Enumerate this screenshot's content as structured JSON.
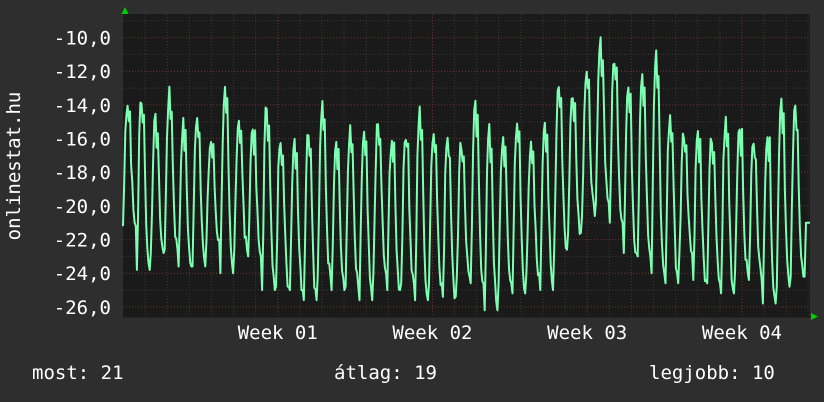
{
  "chart_data": {
    "type": "line",
    "ylabel": "onlinestat.hu",
    "yticks": [
      "-10,0",
      "-12,0",
      "-14,0",
      "-16,0",
      "-18,0",
      "-20,0",
      "-22,0",
      "-24,0",
      "-26,0"
    ],
    "ytick_values": [
      -10,
      -12,
      -14,
      -16,
      -18,
      -20,
      -22,
      -24,
      -26
    ],
    "ylim": [
      -26.6,
      -8.6
    ],
    "xticks": [
      "Week 01",
      "Week 02",
      "Week 03",
      "Week 04"
    ],
    "xtick_positions": [
      1,
      2,
      3,
      4
    ],
    "xlim": [
      0,
      4.44
    ],
    "grid": true,
    "series": [
      {
        "color": "#7dffb2",
        "peaks": [
          -13.8,
          -13.5,
          -15.0,
          -13.4,
          -15.2,
          -14.5,
          -16.2,
          -13.2,
          -14.8,
          -15.4,
          -14.0,
          -15.8,
          -16.0,
          -15.4,
          -14.2,
          -16.0,
          -15.6,
          -15.8,
          -15.2,
          -16.0,
          -15.6,
          -14.5,
          -15.4,
          -16.0,
          -16.2,
          -14.2,
          -15.6,
          -16.0,
          -15.0,
          -16.6,
          -14.8,
          -12.6,
          -13.2,
          -12.2,
          -10.4,
          -11.2,
          -13.0,
          -12.0,
          -11.0,
          -14.6,
          -15.6,
          -15.6,
          -16.0,
          -15.0,
          -15.2,
          -16.2,
          -15.6,
          -13.6,
          -14.2
        ],
        "troughs": [
          -21.2,
          -23.8,
          -22.8,
          -22.6,
          -23.6,
          -23.6,
          -22.0,
          -24.0,
          -22.6,
          -23.0,
          -25.0,
          -24.8,
          -25.0,
          -25.6,
          -24.2,
          -25.0,
          -24.8,
          -25.6,
          -24.0,
          -25.0,
          -24.6,
          -25.6,
          -24.6,
          -25.4,
          -24.2,
          -24.6,
          -26.2,
          -24.6,
          -25.2,
          -24.0,
          -25.0,
          -22.6,
          -21.6,
          -20.6,
          -19.8,
          -21.0,
          -22.8,
          -23.0,
          -24.0,
          -24.6,
          -22.8,
          -24.4,
          -24.6,
          -25.2,
          -24.0,
          -24.4,
          -25.8,
          -24.8,
          -24.2
        ],
        "last": -21.0
      }
    ]
  },
  "footer": {
    "current": "most: 21",
    "average": "átlag: 19",
    "best": "legjobb: 10"
  },
  "colors": {
    "background": "#2e2e2e",
    "plot_background": "#1a1a1a",
    "grid_minor": "#3a3a3a",
    "grid_major": "#6a2f2f",
    "axis_arrow": "#00cc00",
    "line": "#7dffb2"
  }
}
